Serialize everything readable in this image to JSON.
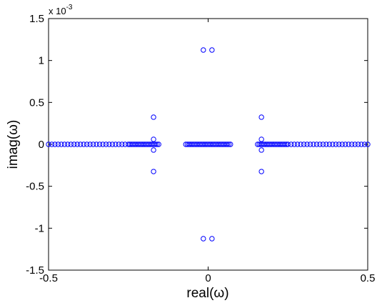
{
  "chart_data": {
    "type": "scatter",
    "x_label": "real(ω)",
    "y_label": "imag(ω)",
    "y_multiplier": {
      "base": "x 10",
      "exponent": "-3"
    },
    "xlim": [
      -0.5,
      0.5
    ],
    "xticks": [
      -0.5,
      0,
      0.5
    ],
    "ylim": [
      -1.5,
      1.5
    ],
    "yticks": [
      -1.5,
      -1,
      -0.5,
      0,
      0.5,
      1,
      1.5
    ],
    "grid": false,
    "marker": "open-circle",
    "series": [
      {
        "color": "#0000ff",
        "x": [
          -0.5,
          -0.49,
          -0.48,
          -0.47,
          -0.46,
          -0.45,
          -0.44,
          -0.43,
          -0.42,
          -0.41,
          -0.4,
          -0.39,
          -0.38,
          -0.37,
          -0.36,
          -0.35,
          -0.34,
          -0.33,
          -0.32,
          -0.31,
          -0.3,
          -0.29,
          -0.28,
          -0.27,
          -0.26,
          -0.25,
          -0.245,
          -0.24,
          -0.235,
          -0.23,
          -0.225,
          -0.22,
          -0.215,
          -0.21,
          -0.205,
          -0.2,
          -0.195,
          -0.19,
          -0.185,
          -0.18,
          -0.175,
          -0.17,
          -0.165,
          -0.16,
          -0.155,
          -0.07,
          -0.065,
          -0.06,
          -0.055,
          -0.05,
          -0.045,
          -0.04,
          -0.035,
          -0.03,
          -0.025,
          -0.02,
          -0.015,
          -0.01,
          -0.005,
          0,
          0.005,
          0.01,
          0.015,
          0.02,
          0.025,
          0.03,
          0.035,
          0.04,
          0.045,
          0.05,
          0.055,
          0.06,
          0.065,
          0.07,
          0.155,
          0.16,
          0.165,
          0.17,
          0.175,
          0.18,
          0.185,
          0.19,
          0.195,
          0.2,
          0.205,
          0.21,
          0.215,
          0.22,
          0.225,
          0.23,
          0.235,
          0.24,
          0.245,
          0.25,
          0.26,
          0.27,
          0.28,
          0.29,
          0.3,
          0.31,
          0.32,
          0.33,
          0.34,
          0.35,
          0.36,
          0.37,
          0.38,
          0.39,
          0.4,
          0.41,
          0.42,
          0.43,
          0.44,
          0.45,
          0.46,
          0.47,
          0.48,
          0.49,
          0.5,
          -0.171,
          -0.171,
          -0.171,
          -0.171,
          0.167,
          0.167,
          0.167,
          0.167,
          -0.015,
          0.012,
          -0.015,
          0.012
        ],
        "y": [
          0,
          0,
          0,
          0,
          0,
          0,
          0,
          0,
          0,
          0,
          0,
          0,
          0,
          0,
          0,
          0,
          0,
          0,
          0,
          0,
          0,
          0,
          0,
          0,
          0,
          0,
          0,
          0,
          0,
          0,
          0,
          0,
          0,
          0,
          0,
          0,
          0,
          0,
          0,
          0,
          0,
          0,
          0,
          0,
          0,
          0,
          0,
          0,
          0,
          0,
          0,
          0,
          0,
          0,
          0,
          0,
          0,
          0,
          0,
          0,
          0,
          0,
          0,
          0,
          0,
          0,
          0,
          0,
          0,
          0,
          0,
          0,
          0,
          0,
          0,
          0,
          0,
          0,
          0,
          0,
          0,
          0,
          0,
          0,
          0,
          0,
          0,
          0,
          0,
          0,
          0,
          0,
          0,
          0,
          0,
          0,
          0,
          0,
          0,
          0,
          0,
          0,
          0,
          0,
          0,
          0,
          0,
          0,
          0,
          0,
          0,
          0,
          0,
          0,
          0,
          0,
          0,
          0,
          0,
          0.324,
          0.06,
          -0.068,
          -0.324,
          0.324,
          0.06,
          -0.068,
          -0.324,
          1.125,
          1.125,
          -1.125,
          -1.125
        ]
      }
    ]
  }
}
